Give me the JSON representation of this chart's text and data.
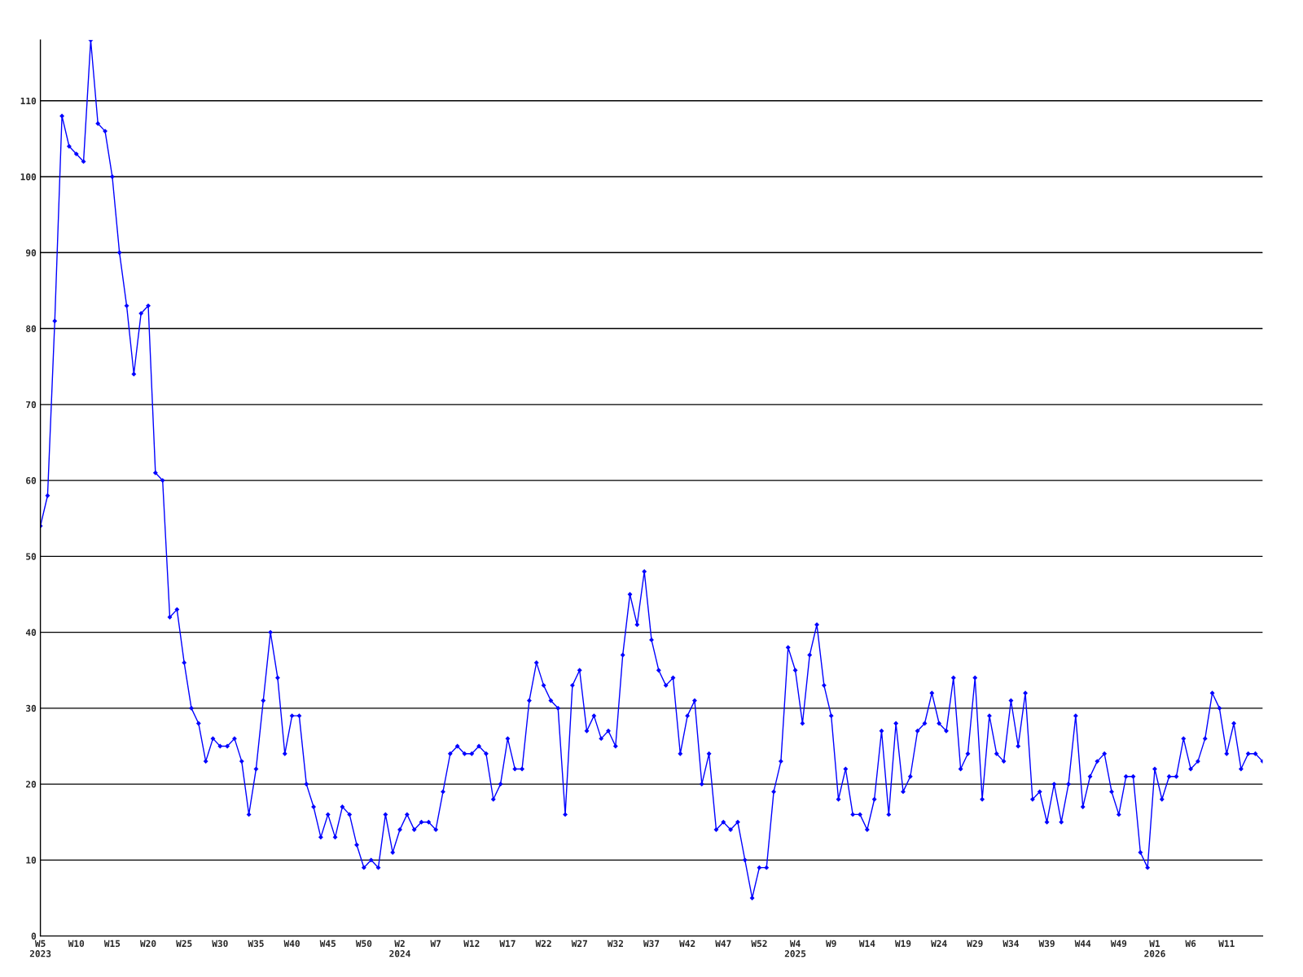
{
  "chart_data": {
    "type": "line",
    "categories": [
      "W5\n2023",
      null,
      null,
      null,
      null,
      "W10",
      null,
      null,
      null,
      null,
      "W15",
      null,
      null,
      null,
      null,
      "W20",
      null,
      null,
      null,
      null,
      "W25",
      null,
      null,
      null,
      null,
      "W30",
      null,
      null,
      null,
      null,
      "W35",
      null,
      null,
      null,
      null,
      "W40",
      null,
      null,
      null,
      null,
      "W45",
      null,
      null,
      null,
      null,
      "W50",
      null,
      null,
      null,
      null,
      "W2\n2024",
      null,
      null,
      null,
      null,
      "W7",
      null,
      null,
      null,
      null,
      "W12",
      null,
      null,
      null,
      null,
      "W17",
      null,
      null,
      null,
      null,
      "W22",
      null,
      null,
      null,
      null,
      "W27",
      null,
      null,
      null,
      null,
      "W32",
      null,
      null,
      null,
      null,
      "W37",
      null,
      null,
      null,
      null,
      "W42",
      null,
      null,
      null,
      null,
      "W47",
      null,
      null,
      null,
      null,
      "W52",
      null,
      null,
      null,
      null,
      "W4\n2025",
      null,
      null,
      null,
      null,
      "W9",
      null,
      null,
      null,
      null,
      "W14",
      null,
      null,
      null,
      null,
      "W19",
      null,
      null,
      null,
      null,
      "W24",
      null,
      null,
      null,
      null,
      "W29",
      null,
      null,
      null,
      null,
      "W34",
      null,
      null,
      null,
      null,
      "W39",
      null,
      null,
      null,
      null,
      "W44",
      null,
      null,
      null,
      null,
      "W49",
      null,
      null,
      null,
      null,
      "W1\n2026",
      null,
      null,
      null,
      null,
      "W6",
      null,
      null,
      null,
      null,
      "W11",
      null,
      null,
      null,
      null,
      null
    ],
    "series": [
      {
        "color": "#0000ff",
        "values": [
          54,
          58,
          81,
          108,
          104,
          103,
          102,
          118,
          107,
          106,
          100,
          90,
          83,
          74,
          82,
          83,
          61,
          60,
          42,
          43,
          36,
          30,
          28,
          23,
          26,
          25,
          25,
          26,
          23,
          16,
          22,
          31,
          40,
          34,
          24,
          29,
          29,
          20,
          17,
          13,
          16,
          13,
          17,
          16,
          12,
          9,
          10,
          9,
          16,
          11,
          14,
          16,
          14,
          15,
          15,
          14,
          19,
          24,
          25,
          24,
          24,
          25,
          24,
          18,
          20,
          26,
          22,
          22,
          31,
          36,
          33,
          31,
          30,
          16,
          33,
          35,
          27,
          29,
          26,
          27,
          25,
          37,
          45,
          41,
          48,
          39,
          35,
          33,
          34,
          24,
          29,
          31,
          20,
          24,
          14,
          15,
          14,
          15,
          10,
          5,
          9,
          9,
          19,
          23,
          38,
          35,
          28,
          37,
          41,
          33,
          29,
          18,
          22,
          16,
          16,
          14,
          18,
          27,
          16,
          28,
          19,
          21,
          27,
          28,
          32,
          28,
          27,
          34,
          22,
          24,
          34,
          18,
          29,
          24,
          23,
          31,
          25,
          32,
          18,
          19,
          15,
          20,
          15,
          20,
          29,
          17,
          21,
          23,
          24,
          19,
          16,
          21,
          21,
          11,
          9,
          22,
          18,
          21,
          21,
          26,
          22,
          23,
          26,
          32,
          30,
          24,
          28,
          22,
          24,
          24,
          23
        ]
      }
    ],
    "ylim": [
      0,
      118
    ],
    "yticks": [
      0,
      10,
      20,
      30,
      40,
      50,
      60,
      70,
      80,
      90,
      100,
      110
    ],
    "grid": "y",
    "marker": "diamond",
    "line_style": "solid",
    "legend": false
  }
}
